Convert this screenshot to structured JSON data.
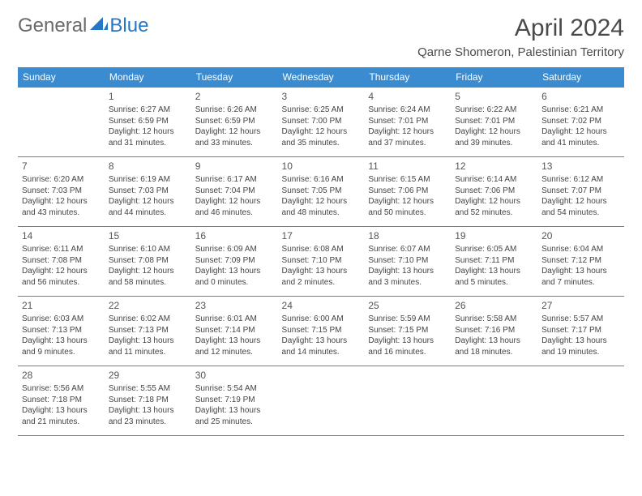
{
  "brand": {
    "part1": "General",
    "part2": "Blue"
  },
  "title": "April 2024",
  "location": "Qarne Shomeron, Palestinian Territory",
  "header_bg": "#3b8bd0",
  "days_of_week": [
    "Sunday",
    "Monday",
    "Tuesday",
    "Wednesday",
    "Thursday",
    "Friday",
    "Saturday"
  ],
  "weeks": [
    [
      null,
      {
        "n": "1",
        "sr": "Sunrise: 6:27 AM",
        "ss": "Sunset: 6:59 PM",
        "d1": "Daylight: 12 hours",
        "d2": "and 31 minutes."
      },
      {
        "n": "2",
        "sr": "Sunrise: 6:26 AM",
        "ss": "Sunset: 6:59 PM",
        "d1": "Daylight: 12 hours",
        "d2": "and 33 minutes."
      },
      {
        "n": "3",
        "sr": "Sunrise: 6:25 AM",
        "ss": "Sunset: 7:00 PM",
        "d1": "Daylight: 12 hours",
        "d2": "and 35 minutes."
      },
      {
        "n": "4",
        "sr": "Sunrise: 6:24 AM",
        "ss": "Sunset: 7:01 PM",
        "d1": "Daylight: 12 hours",
        "d2": "and 37 minutes."
      },
      {
        "n": "5",
        "sr": "Sunrise: 6:22 AM",
        "ss": "Sunset: 7:01 PM",
        "d1": "Daylight: 12 hours",
        "d2": "and 39 minutes."
      },
      {
        "n": "6",
        "sr": "Sunrise: 6:21 AM",
        "ss": "Sunset: 7:02 PM",
        "d1": "Daylight: 12 hours",
        "d2": "and 41 minutes."
      }
    ],
    [
      {
        "n": "7",
        "sr": "Sunrise: 6:20 AM",
        "ss": "Sunset: 7:03 PM",
        "d1": "Daylight: 12 hours",
        "d2": "and 43 minutes."
      },
      {
        "n": "8",
        "sr": "Sunrise: 6:19 AM",
        "ss": "Sunset: 7:03 PM",
        "d1": "Daylight: 12 hours",
        "d2": "and 44 minutes."
      },
      {
        "n": "9",
        "sr": "Sunrise: 6:17 AM",
        "ss": "Sunset: 7:04 PM",
        "d1": "Daylight: 12 hours",
        "d2": "and 46 minutes."
      },
      {
        "n": "10",
        "sr": "Sunrise: 6:16 AM",
        "ss": "Sunset: 7:05 PM",
        "d1": "Daylight: 12 hours",
        "d2": "and 48 minutes."
      },
      {
        "n": "11",
        "sr": "Sunrise: 6:15 AM",
        "ss": "Sunset: 7:06 PM",
        "d1": "Daylight: 12 hours",
        "d2": "and 50 minutes."
      },
      {
        "n": "12",
        "sr": "Sunrise: 6:14 AM",
        "ss": "Sunset: 7:06 PM",
        "d1": "Daylight: 12 hours",
        "d2": "and 52 minutes."
      },
      {
        "n": "13",
        "sr": "Sunrise: 6:12 AM",
        "ss": "Sunset: 7:07 PM",
        "d1": "Daylight: 12 hours",
        "d2": "and 54 minutes."
      }
    ],
    [
      {
        "n": "14",
        "sr": "Sunrise: 6:11 AM",
        "ss": "Sunset: 7:08 PM",
        "d1": "Daylight: 12 hours",
        "d2": "and 56 minutes."
      },
      {
        "n": "15",
        "sr": "Sunrise: 6:10 AM",
        "ss": "Sunset: 7:08 PM",
        "d1": "Daylight: 12 hours",
        "d2": "and 58 minutes."
      },
      {
        "n": "16",
        "sr": "Sunrise: 6:09 AM",
        "ss": "Sunset: 7:09 PM",
        "d1": "Daylight: 13 hours",
        "d2": "and 0 minutes."
      },
      {
        "n": "17",
        "sr": "Sunrise: 6:08 AM",
        "ss": "Sunset: 7:10 PM",
        "d1": "Daylight: 13 hours",
        "d2": "and 2 minutes."
      },
      {
        "n": "18",
        "sr": "Sunrise: 6:07 AM",
        "ss": "Sunset: 7:10 PM",
        "d1": "Daylight: 13 hours",
        "d2": "and 3 minutes."
      },
      {
        "n": "19",
        "sr": "Sunrise: 6:05 AM",
        "ss": "Sunset: 7:11 PM",
        "d1": "Daylight: 13 hours",
        "d2": "and 5 minutes."
      },
      {
        "n": "20",
        "sr": "Sunrise: 6:04 AM",
        "ss": "Sunset: 7:12 PM",
        "d1": "Daylight: 13 hours",
        "d2": "and 7 minutes."
      }
    ],
    [
      {
        "n": "21",
        "sr": "Sunrise: 6:03 AM",
        "ss": "Sunset: 7:13 PM",
        "d1": "Daylight: 13 hours",
        "d2": "and 9 minutes."
      },
      {
        "n": "22",
        "sr": "Sunrise: 6:02 AM",
        "ss": "Sunset: 7:13 PM",
        "d1": "Daylight: 13 hours",
        "d2": "and 11 minutes."
      },
      {
        "n": "23",
        "sr": "Sunrise: 6:01 AM",
        "ss": "Sunset: 7:14 PM",
        "d1": "Daylight: 13 hours",
        "d2": "and 12 minutes."
      },
      {
        "n": "24",
        "sr": "Sunrise: 6:00 AM",
        "ss": "Sunset: 7:15 PM",
        "d1": "Daylight: 13 hours",
        "d2": "and 14 minutes."
      },
      {
        "n": "25",
        "sr": "Sunrise: 5:59 AM",
        "ss": "Sunset: 7:15 PM",
        "d1": "Daylight: 13 hours",
        "d2": "and 16 minutes."
      },
      {
        "n": "26",
        "sr": "Sunrise: 5:58 AM",
        "ss": "Sunset: 7:16 PM",
        "d1": "Daylight: 13 hours",
        "d2": "and 18 minutes."
      },
      {
        "n": "27",
        "sr": "Sunrise: 5:57 AM",
        "ss": "Sunset: 7:17 PM",
        "d1": "Daylight: 13 hours",
        "d2": "and 19 minutes."
      }
    ],
    [
      {
        "n": "28",
        "sr": "Sunrise: 5:56 AM",
        "ss": "Sunset: 7:18 PM",
        "d1": "Daylight: 13 hours",
        "d2": "and 21 minutes."
      },
      {
        "n": "29",
        "sr": "Sunrise: 5:55 AM",
        "ss": "Sunset: 7:18 PM",
        "d1": "Daylight: 13 hours",
        "d2": "and 23 minutes."
      },
      {
        "n": "30",
        "sr": "Sunrise: 5:54 AM",
        "ss": "Sunset: 7:19 PM",
        "d1": "Daylight: 13 hours",
        "d2": "and 25 minutes."
      },
      null,
      null,
      null,
      null
    ]
  ]
}
